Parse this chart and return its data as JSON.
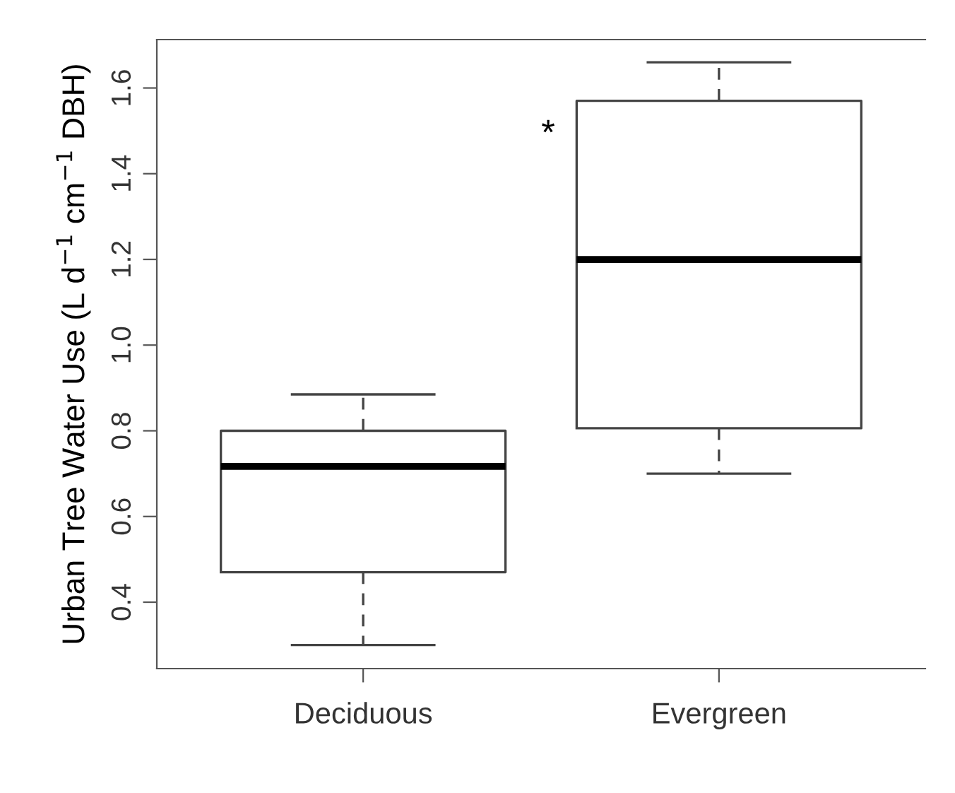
{
  "chart_data": {
    "type": "box",
    "ylabel": "Urban Tree Water Use (L d$^{−1}$ cm$^{−1}$ DBH)",
    "categories": [
      "Deciduous",
      "Evergreen"
    ],
    "boxes": [
      {
        "low": 0.3,
        "q1": 0.47,
        "median": 0.717,
        "q3": 0.8,
        "high": 0.885
      },
      {
        "low": 0.7,
        "q1": 0.806,
        "median": 1.2,
        "q3": 1.57,
        "high": 1.66
      }
    ],
    "ylim": [
      0.245,
      1.713
    ],
    "yticks": [
      0.4,
      0.6,
      0.8,
      {
        "value": 1.0,
        "label": "1.0"
      },
      1.2,
      1.4,
      1.6
    ],
    "annotations": [
      "*"
    ],
    "grid": false
  }
}
